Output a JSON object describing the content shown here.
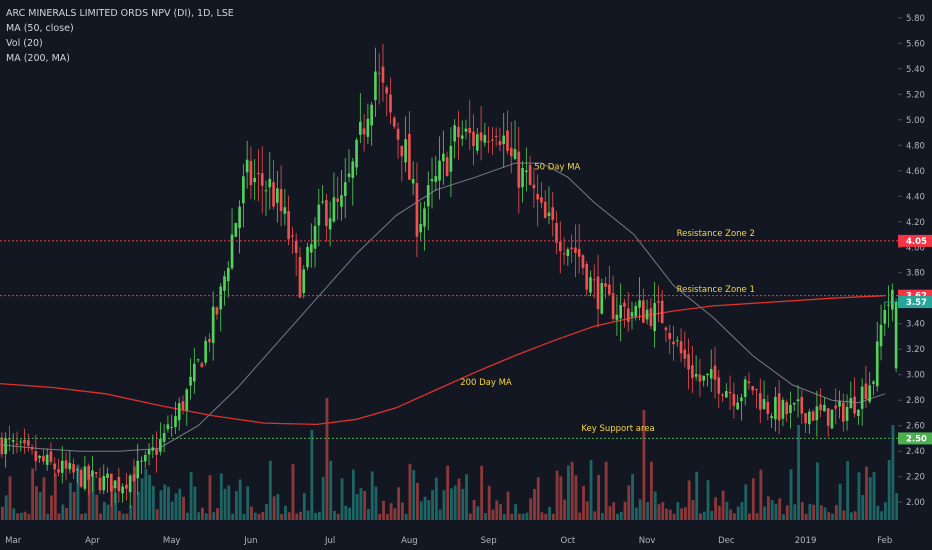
{
  "legend": {
    "symbol": "ARC MINERALS LIMITED ORDS NPV (DI), 1D, LSE",
    "ma50": "MA (50, close)",
    "vol": "Vol (20)",
    "ma200": "MA (200, MA)"
  },
  "colors": {
    "background": "#131722",
    "up": "#26a69a",
    "upCandle": "#53d15a",
    "down": "#ef5350",
    "downCandle": "#f05050",
    "ma50": "#787b86",
    "ma200": "#e0312b",
    "resistance": "#f23645",
    "support": "#4caf50",
    "annotation": "#f5d742",
    "axisText": "#b2b5be"
  },
  "chart_data": {
    "type": "candlestick",
    "yaxis": {
      "ticks": [
        "2.00",
        "2.20",
        "2.40",
        "2.60",
        "2.80",
        "3.00",
        "3.20",
        "3.40",
        "3.60",
        "3.80",
        "4.00",
        "4.20",
        "4.40",
        "4.60",
        "4.80",
        "5.00",
        "5.20",
        "5.40",
        "5.60",
        "5.80"
      ],
      "range": [
        1.86,
        5.94
      ]
    },
    "xaxis": {
      "labels": [
        "Mar",
        "Apr",
        "May",
        "Jun",
        "Jul",
        "Aug",
        "Sep",
        "Oct",
        "Nov",
        "Dec",
        "2019",
        "Feb"
      ],
      "positions": [
        0.5,
        3.5,
        6.5,
        9.5,
        12.5,
        15.5,
        18.5,
        21.5,
        24.5,
        27.5,
        30.5,
        33.5
      ],
      "range": [
        0,
        34
      ]
    },
    "horizontal_levels": [
      {
        "name": "Resistance Zone 2",
        "value": 4.05,
        "label": "4.05",
        "type": "resistance"
      },
      {
        "name": "Resistance Zone 1",
        "value": 3.62,
        "label": "3.62",
        "type": "resistance"
      },
      {
        "name": "Key Support area",
        "value": 2.5,
        "label": "2.50",
        "type": "support"
      }
    ],
    "last_price": {
      "value": 3.57,
      "label": "3.57"
    },
    "annotations": [
      {
        "text": "50 Day MA",
        "x": 21.1,
        "y": 4.61
      },
      {
        "text": "Resistance Zone 2",
        "x": 27.1,
        "y": 4.09
      },
      {
        "text": "Resistance Zone 1",
        "x": 27.1,
        "y": 3.65
      },
      {
        "text": "200 Day MA",
        "x": 18.4,
        "y": 2.92
      },
      {
        "text": "Key Support area",
        "x": 23.4,
        "y": 2.56
      }
    ],
    "price_path": [
      [
        0.0,
        2.48
      ],
      [
        1.5,
        2.32
      ],
      [
        3.0,
        2.2
      ],
      [
        4.5,
        2.14
      ],
      [
        5.5,
        2.3
      ],
      [
        6.5,
        2.6
      ],
      [
        7.3,
        2.95
      ],
      [
        8.3,
        3.55
      ],
      [
        8.8,
        4.1
      ],
      [
        9.3,
        4.55
      ],
      [
        10.2,
        4.48
      ],
      [
        10.8,
        4.2
      ],
      [
        11.4,
        3.7
      ],
      [
        12.2,
        4.3
      ],
      [
        12.9,
        4.3
      ],
      [
        13.5,
        4.7
      ],
      [
        14.2,
        5.4
      ],
      [
        14.8,
        5.0
      ],
      [
        15.3,
        4.8
      ],
      [
        15.8,
        4.2
      ],
      [
        16.5,
        4.5
      ],
      [
        17.3,
        4.88
      ],
      [
        18.0,
        4.85
      ],
      [
        18.8,
        5.0
      ],
      [
        19.4,
        4.65
      ],
      [
        20.0,
        4.5
      ],
      [
        20.6,
        4.2
      ],
      [
        21.2,
        4.1
      ],
      [
        21.9,
        3.95
      ],
      [
        22.4,
        3.7
      ],
      [
        23.0,
        3.55
      ],
      [
        23.7,
        3.5
      ],
      [
        24.5,
        3.5
      ],
      [
        25.2,
        3.45
      ],
      [
        25.8,
        3.15
      ],
      [
        26.5,
        2.95
      ],
      [
        27.2,
        2.95
      ],
      [
        27.8,
        2.85
      ],
      [
        28.5,
        2.9
      ],
      [
        29.0,
        2.75
      ],
      [
        29.8,
        2.7
      ],
      [
        30.5,
        2.72
      ],
      [
        31.2,
        2.68
      ],
      [
        31.8,
        2.7
      ],
      [
        32.4,
        2.8
      ],
      [
        33.1,
        3.0
      ],
      [
        33.5,
        3.57
      ]
    ],
    "ma50": [
      [
        0.0,
        2.45
      ],
      [
        1.5,
        2.42
      ],
      [
        3.0,
        2.4
      ],
      [
        4.5,
        2.4
      ],
      [
        6.0,
        2.42
      ],
      [
        7.5,
        2.6
      ],
      [
        9.0,
        2.9
      ],
      [
        10.5,
        3.25
      ],
      [
        12.0,
        3.6
      ],
      [
        13.5,
        3.95
      ],
      [
        15.0,
        4.25
      ],
      [
        16.5,
        4.45
      ],
      [
        18.0,
        4.55
      ],
      [
        19.5,
        4.66
      ],
      [
        20.5,
        4.66
      ],
      [
        21.5,
        4.55
      ],
      [
        22.5,
        4.35
      ],
      [
        24.0,
        4.1
      ],
      [
        25.5,
        3.7
      ],
      [
        27.0,
        3.45
      ],
      [
        28.5,
        3.15
      ],
      [
        30.0,
        2.92
      ],
      [
        31.5,
        2.8
      ],
      [
        32.5,
        2.78
      ],
      [
        33.5,
        2.85
      ]
    ],
    "ma200": [
      [
        0.0,
        2.93
      ],
      [
        2.0,
        2.9
      ],
      [
        4.0,
        2.85
      ],
      [
        6.0,
        2.76
      ],
      [
        8.0,
        2.68
      ],
      [
        10.0,
        2.62
      ],
      [
        12.0,
        2.61
      ],
      [
        13.5,
        2.65
      ],
      [
        15.0,
        2.74
      ],
      [
        16.5,
        2.88
      ],
      [
        18.0,
        3.02
      ],
      [
        19.5,
        3.15
      ],
      [
        21.0,
        3.27
      ],
      [
        22.5,
        3.38
      ],
      [
        24.0,
        3.45
      ],
      [
        25.5,
        3.5
      ],
      [
        27.0,
        3.54
      ],
      [
        28.5,
        3.56
      ],
      [
        30.0,
        3.58
      ],
      [
        31.5,
        3.6
      ],
      [
        33.5,
        3.62
      ]
    ]
  }
}
